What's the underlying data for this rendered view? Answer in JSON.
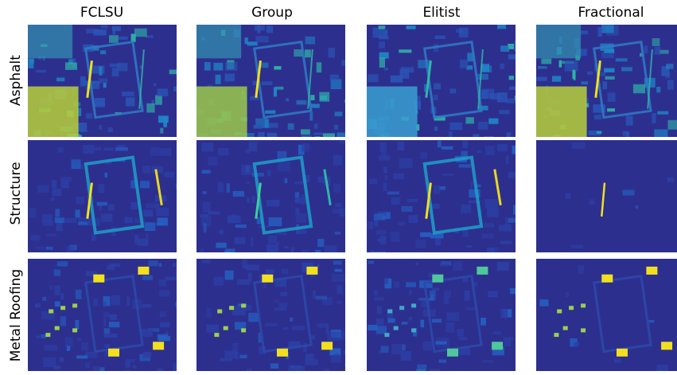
{
  "columns": [
    {
      "title": "FCLSU"
    },
    {
      "title": "Group"
    },
    {
      "title": "Elitist"
    },
    {
      "title": "Fractional"
    }
  ],
  "rows": [
    {
      "label": "Asphalt"
    },
    {
      "label": "Structure"
    },
    {
      "label": "Metal Roofing"
    }
  ],
  "colors": {
    "background": "#2b2f8e",
    "low": "#2b3a9c",
    "mid": "#1f9fc8",
    "high": "#f2e01f"
  }
}
